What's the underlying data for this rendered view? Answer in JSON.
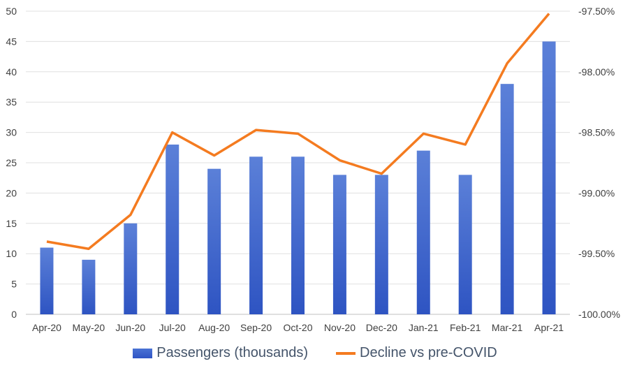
{
  "chart_data": {
    "type": "bar+line",
    "categories": [
      "Apr-20",
      "May-20",
      "Jun-20",
      "Jul-20",
      "Aug-20",
      "Sep-20",
      "Oct-20",
      "Nov-20",
      "Dec-20",
      "Jan-21",
      "Feb-21",
      "Mar-21",
      "Apr-21"
    ],
    "series": [
      {
        "name": "Passengers (thousands)",
        "type": "bar",
        "axis": "left",
        "color": "#3a62cc",
        "values": [
          11,
          9,
          15,
          28,
          24,
          26,
          26,
          23,
          23,
          27,
          23,
          38,
          45
        ]
      },
      {
        "name": "Decline vs pre-COVID",
        "type": "line",
        "axis": "right",
        "color": "#f47b20",
        "values": [
          -99.4,
          -99.46,
          -99.18,
          -98.5,
          -98.69,
          -98.48,
          -98.51,
          -98.73,
          -98.84,
          -98.51,
          -98.6,
          -97.93,
          -97.52
        ]
      }
    ],
    "left_axis": {
      "range": [
        0,
        50
      ],
      "ticks": [
        "0",
        "5",
        "10",
        "15",
        "20",
        "25",
        "30",
        "35",
        "40",
        "45",
        "50"
      ]
    },
    "right_axis": {
      "range": [
        -100,
        -97.5
      ],
      "ticks": [
        "-100.00%",
        "-99.50%",
        "-99.00%",
        "-98.50%",
        "-98.00%",
        "-97.50%"
      ]
    },
    "grid": true,
    "legend": "bottom"
  }
}
